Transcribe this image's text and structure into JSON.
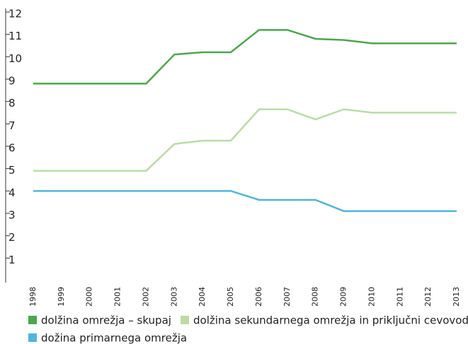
{
  "chart_data": {
    "type": "line",
    "categories": [
      "1998",
      "1999",
      "2000",
      "2001",
      "2002",
      "2003",
      "2004",
      "2005",
      "2006",
      "2007",
      "2008",
      "2009",
      "2010",
      "2011",
      "2012",
      "2013"
    ],
    "series": [
      {
        "name": "dolžina omrežja – skupaj",
        "color": "#4aa84a",
        "values": [
          8.8,
          8.8,
          8.8,
          8.8,
          8.8,
          10.1,
          10.2,
          10.2,
          11.2,
          11.2,
          10.8,
          10.75,
          10.6,
          10.6,
          10.6,
          10.6
        ]
      },
      {
        "name": "dolžina sekundarnega omrežja in priključni cevovodi",
        "color": "#badca4",
        "values": [
          4.9,
          4.9,
          4.9,
          4.9,
          4.9,
          6.1,
          6.25,
          6.25,
          7.65,
          7.65,
          7.2,
          7.65,
          7.5,
          7.5,
          7.5,
          7.5
        ]
      },
      {
        "name": "dožina primarnega omrežja",
        "color": "#4cb6e0",
        "values": [
          4.0,
          4.0,
          4.0,
          4.0,
          4.0,
          4.0,
          4.0,
          4.0,
          3.6,
          3.6,
          3.6,
          3.1,
          3.1,
          3.1,
          3.1,
          3.1
        ]
      }
    ],
    "ylim": [
      0,
      12
    ],
    "yticks": [
      1,
      2,
      3,
      4,
      5,
      6,
      7,
      8,
      9,
      10,
      11,
      12
    ],
    "legend": "bottom"
  }
}
